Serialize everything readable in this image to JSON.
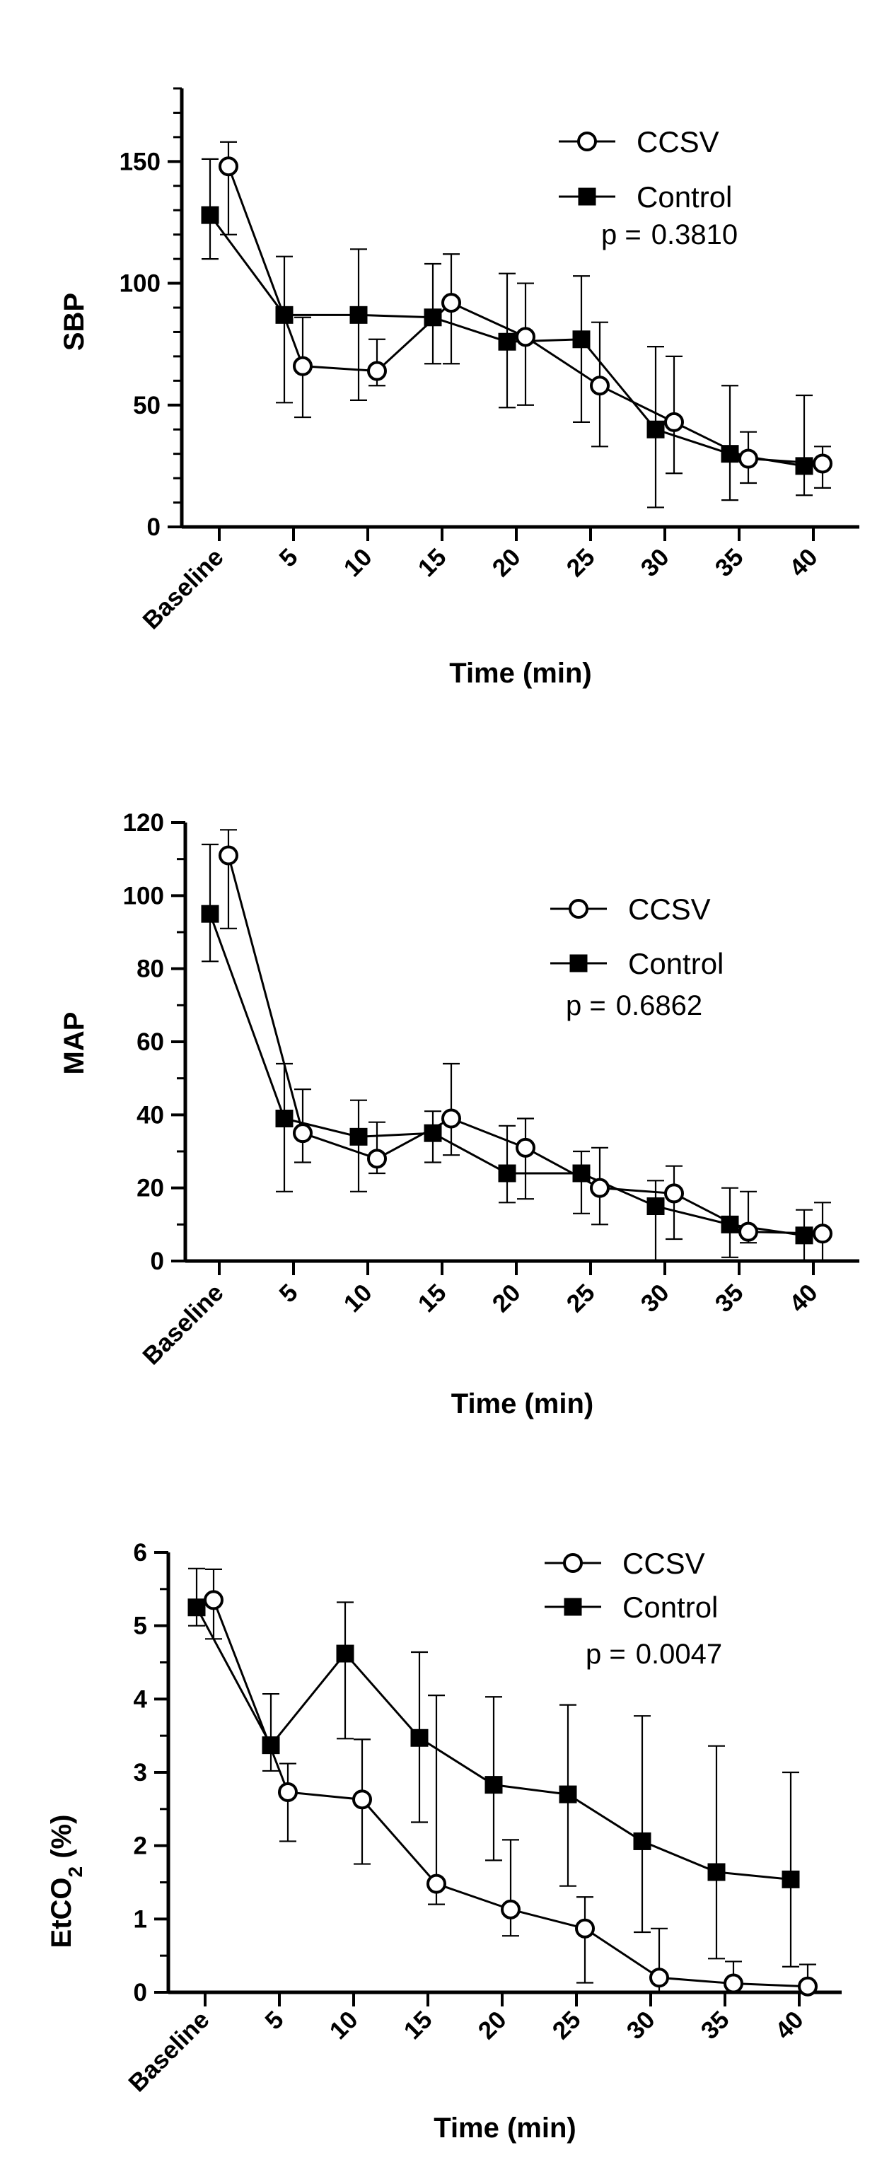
{
  "chart_data": [
    {
      "type": "line",
      "id": "sbp",
      "ylabel": "SBP",
      "ylabel_sub": "",
      "ylabel_suffix": "",
      "xlabel": "Time (min)",
      "categories": [
        "Baseline",
        "5",
        "10",
        "15",
        "20",
        "25",
        "30",
        "35",
        "40"
      ],
      "ylim": [
        0,
        180
      ],
      "yticks": [
        "0",
        "50",
        "100",
        "150"
      ],
      "ytick_values": [
        0,
        50,
        100,
        150
      ],
      "ytick_minor_step": 10,
      "legend": {
        "position": "top-right",
        "entries": [
          "CCSV",
          "Control"
        ]
      },
      "p_label": "p =",
      "p_value": "0.3810",
      "series": [
        {
          "name": "CCSV",
          "marker": "open-circle",
          "values": [
            148,
            66,
            64,
            92,
            78,
            58,
            43,
            28,
            26
          ],
          "err_low": [
            120,
            45,
            58,
            67,
            50,
            33,
            22,
            18,
            16
          ],
          "err_high": [
            158,
            86,
            77,
            112,
            100,
            84,
            70,
            39,
            33
          ]
        },
        {
          "name": "Control",
          "marker": "filled-square",
          "values": [
            128,
            87,
            87,
            86,
            76,
            77,
            40,
            30,
            25
          ],
          "err_low": [
            110,
            51,
            52,
            67,
            49,
            43,
            8,
            11,
            13
          ],
          "err_high": [
            151,
            111,
            114,
            108,
            104,
            103,
            74,
            58,
            54
          ]
        }
      ]
    },
    {
      "type": "line",
      "id": "map",
      "ylabel": "MAP",
      "ylabel_sub": "",
      "ylabel_suffix": "",
      "xlabel": "Time (min)",
      "categories": [
        "Baseline",
        "5",
        "10",
        "15",
        "20",
        "25",
        "30",
        "35",
        "40"
      ],
      "ylim": [
        0,
        120
      ],
      "yticks": [
        "0",
        "20",
        "40",
        "60",
        "80",
        "100",
        "120"
      ],
      "ytick_values": [
        0,
        20,
        40,
        60,
        80,
        100,
        120
      ],
      "ytick_minor_step": 10,
      "legend": {
        "position": "top-right",
        "entries": [
          "CCSV",
          "Control"
        ]
      },
      "p_label": "p =",
      "p_value": "0.6862",
      "series": [
        {
          "name": "CCSV",
          "marker": "open-circle",
          "values": [
            111,
            35,
            28,
            39,
            31,
            20,
            18.5,
            8,
            7.5
          ],
          "err_low": [
            91,
            27,
            24,
            29,
            17,
            10,
            6,
            5,
            0
          ],
          "err_high": [
            118,
            47,
            38,
            54,
            39,
            31,
            26,
            19,
            16
          ]
        },
        {
          "name": "Control",
          "marker": "filled-square",
          "values": [
            95,
            39,
            34,
            35,
            24,
            24,
            15,
            10,
            7
          ],
          "err_low": [
            82,
            19,
            19,
            27,
            16,
            13,
            0,
            1,
            0
          ],
          "err_high": [
            114,
            54,
            44,
            41,
            37,
            30,
            22,
            20,
            14
          ]
        }
      ]
    },
    {
      "type": "line",
      "id": "etco2",
      "ylabel": "EtCO",
      "ylabel_sub": "2",
      "ylabel_suffix": " (%)",
      "xlabel": "Time (min)",
      "categories": [
        "Baseline",
        "5",
        "10",
        "15",
        "20",
        "25",
        "30",
        "35",
        "40"
      ],
      "ylim": [
        0,
        6
      ],
      "yticks": [
        "0",
        "1",
        "2",
        "3",
        "4",
        "5",
        "6"
      ],
      "ytick_values": [
        0,
        1,
        2,
        3,
        4,
        5,
        6
      ],
      "ytick_minor_step": 0.5,
      "legend": {
        "position": "top-right",
        "entries": [
          "CCSV",
          "Control"
        ]
      },
      "p_label": "p =",
      "p_value": "0.0047",
      "series": [
        {
          "name": "CCSV",
          "marker": "open-circle",
          "values": [
            5.35,
            2.73,
            2.63,
            1.48,
            1.13,
            0.87,
            0.2,
            0.12,
            0.08
          ],
          "err_low": [
            4.82,
            2.06,
            1.75,
            1.2,
            0.77,
            0.13,
            0.0,
            0.0,
            0.0
          ],
          "err_high": [
            5.77,
            3.12,
            3.45,
            4.05,
            2.08,
            1.3,
            0.87,
            0.42,
            0.38
          ]
        },
        {
          "name": "Control",
          "marker": "filled-square",
          "values": [
            5.25,
            3.37,
            4.62,
            3.47,
            2.83,
            2.7,
            2.06,
            1.64,
            1.54
          ],
          "err_low": [
            5.0,
            3.02,
            3.46,
            2.32,
            1.8,
            1.45,
            0.82,
            0.46,
            0.35
          ],
          "err_high": [
            5.78,
            4.07,
            5.32,
            4.64,
            4.03,
            3.92,
            3.77,
            3.36,
            3.0
          ]
        }
      ]
    }
  ]
}
